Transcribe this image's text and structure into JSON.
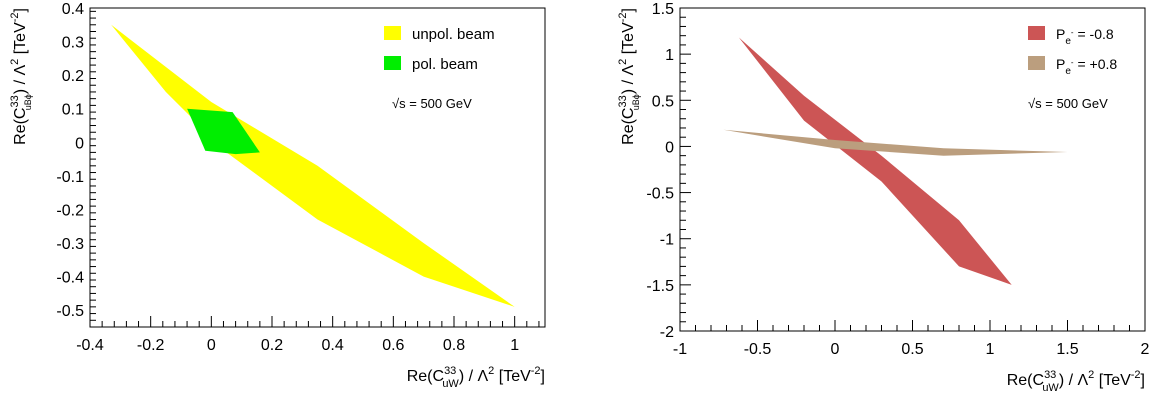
{
  "chart_data": [
    {
      "type": "area",
      "xlabel": "Re(C_uW^33) / Λ^2 [TeV^-2]",
      "ylabel": "Re(C_uBφ^33) / Λ^2 [TeV^-2]",
      "xlim": [
        -0.4,
        1.1
      ],
      "ylim": [
        -0.55,
        0.4
      ],
      "x_ticks": [
        "-0.4",
        "-0.2",
        "0",
        "0.2",
        "0.4",
        "0.6",
        "0.8",
        "1"
      ],
      "y_ticks": [
        "0.4",
        "0.3",
        "0.2",
        "0.1",
        "0",
        "-0.1",
        "-0.2",
        "-0.3",
        "-0.4",
        "-0.5"
      ],
      "legend_position": "top-right",
      "annotation": "√s = 500 GeV",
      "series": [
        {
          "name": "unpol. beam",
          "color": "#ffff00",
          "x": [
            -0.33,
            0.0,
            0.35,
            0.7,
            1.0,
            0.7,
            0.35,
            0.05,
            -0.15,
            -0.33
          ],
          "y": [
            0.35,
            0.12,
            -0.07,
            -0.3,
            -0.49,
            -0.4,
            -0.23,
            -0.03,
            0.15,
            0.35
          ]
        },
        {
          "name": "pol. beam",
          "color": "#00ee00",
          "x": [
            -0.08,
            0.07,
            0.16,
            0.08,
            -0.02,
            -0.08
          ],
          "y": [
            0.1,
            0.09,
            -0.03,
            -0.035,
            -0.025,
            0.1
          ]
        }
      ]
    },
    {
      "type": "area",
      "xlabel": "Re(C_uW^33) / Λ^2 [TeV^-2]",
      "ylabel": "Re(C_uBφ^33) / Λ^2 [TeV^-2]",
      "xlim": [
        -1,
        2
      ],
      "ylim": [
        -2,
        1.5
      ],
      "x_ticks": [
        "-1",
        "-0.5",
        "0",
        "0.5",
        "1",
        "1.5",
        "2"
      ],
      "y_ticks": [
        "1.5",
        "1",
        "0.5",
        "0",
        "-0.5",
        "-1",
        "-1.5",
        "-2"
      ],
      "legend_position": "top-right",
      "annotation": "√s = 500 GeV",
      "series": [
        {
          "name": "P_e- = -0.8",
          "color": "#cc5555",
          "x": [
            -0.62,
            -0.2,
            0.3,
            0.8,
            1.14,
            0.8,
            0.3,
            -0.2,
            -0.62
          ],
          "y": [
            1.18,
            0.55,
            -0.1,
            -0.8,
            -1.5,
            -1.3,
            -0.38,
            0.28,
            1.18
          ]
        },
        {
          "name": "P_e- = +0.8",
          "color": "#bb9e7e",
          "x": [
            -0.72,
            0.0,
            0.7,
            1.5,
            0.7,
            0.0,
            -0.72
          ],
          "y": [
            0.18,
            0.07,
            -0.02,
            -0.06,
            -0.1,
            -0.02,
            0.18
          ]
        }
      ]
    }
  ],
  "panels": [
    {
      "xlabel_main": "Re(C",
      "xlabel_sup": "33",
      "xlabel_sub": "uW",
      "xlabel_tail": ") / Λ",
      "xlabel_exp": "2",
      "xlabel_unit": " [TeV",
      "xlabel_unit_exp": "-2",
      "xlabel_close": "]",
      "ylabel_main": "Re(C",
      "ylabel_sup": "33",
      "ylabel_sub": "uBϕ",
      "ylabel_tail": ") / Λ",
      "ylabel_exp": "2",
      "ylabel_unit": " [TeV",
      "ylabel_unit_exp": "-2",
      "ylabel_close": "]",
      "legend": [
        {
          "label": "unpol. beam"
        },
        {
          "label": "pol. beam"
        }
      ],
      "annotation": "√s = 500 GeV"
    },
    {
      "xlabel_main": "Re(C",
      "xlabel_sup": "33",
      "xlabel_sub": "uW",
      "xlabel_tail": ") / Λ",
      "xlabel_exp": "2",
      "xlabel_unit": " [TeV",
      "xlabel_unit_exp": "-2",
      "xlabel_close": "]",
      "ylabel_main": "Re(C",
      "ylabel_sup": "33",
      "ylabel_sub": "uBϕ",
      "ylabel_tail": ") / Λ",
      "ylabel_exp": "2",
      "ylabel_unit": " [TeV",
      "ylabel_unit_exp": "-2",
      "ylabel_close": "]",
      "legend": [
        {
          "label_main": "P",
          "label_sub": "e",
          "label_sup": "-",
          "label_tail": " = -0.8"
        },
        {
          "label_main": "P",
          "label_sub": "e",
          "label_sup": "-",
          "label_tail": " = +0.8"
        }
      ],
      "annotation": "√s = 500 GeV"
    }
  ]
}
